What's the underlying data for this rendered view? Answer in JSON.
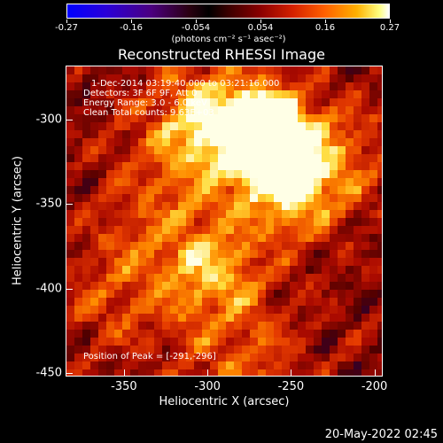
{
  "colorbar": {
    "ticks": [
      "-0.27",
      "-0.16",
      "-0.054",
      "0.054",
      "0.16",
      "0.27"
    ],
    "unit": "(photons cm⁻² s⁻¹ asec⁻²)"
  },
  "chart_data": {
    "type": "heatmap",
    "title": "Reconstructed RHESSI Image",
    "xlabel": "Heliocentric X (arcsec)",
    "ylabel": "Heliocentric Y (arcsec)",
    "xlim": [
      -385,
      -195
    ],
    "ylim": [
      -452,
      -268
    ],
    "xticks": [
      "-350",
      "-300",
      "-250",
      "-200"
    ],
    "yticks": [
      "-300",
      "-350",
      "-400",
      "-450"
    ],
    "xtick_values": [
      -350,
      -300,
      -250,
      -200
    ],
    "ytick_values": [
      -300,
      -350,
      -400,
      -450
    ],
    "colorscale": [
      "#0000ff",
      "#4b0080",
      "#000000",
      "#8a0000",
      "#ff6000",
      "#ffff80",
      "#ffffff"
    ],
    "value_range": [
      -0.27,
      0.27
    ],
    "peak": [
      -291,
      -296
    ],
    "annotations": [
      "1-Dec-2014 03:19:40.000 to 03:21:16.000",
      "Detectors: 3F 6F 9F, Att 0",
      "Energy Range: 3.0 - 6.0 keV",
      "Clean     Total counts: 9.63E+03"
    ],
    "peak_label": "Position of Peak = [-291,-296]"
  },
  "footer": {
    "timestamp": "20-May-2022 02:45"
  }
}
